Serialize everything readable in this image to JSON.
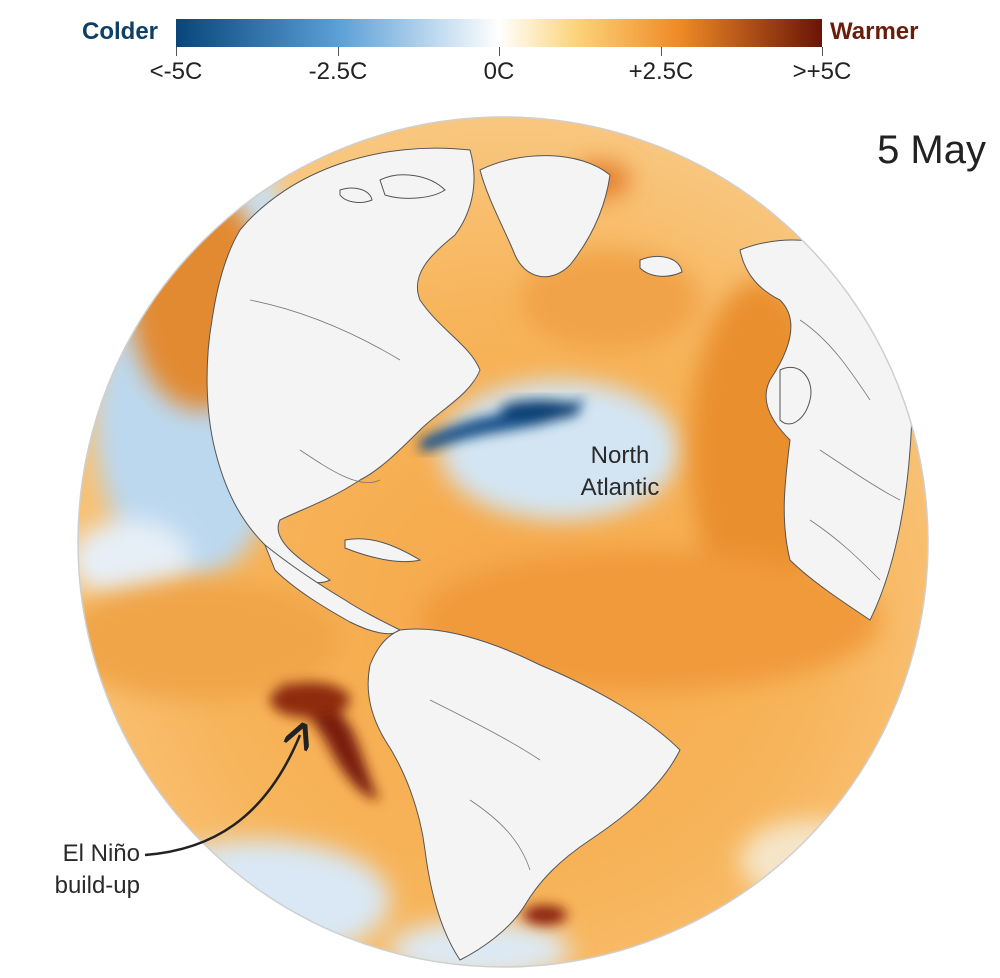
{
  "legend": {
    "colder_label": "Colder",
    "warmer_label": "Warmer",
    "ticks": [
      "<-5C",
      "-2.5C",
      "0C",
      "+2.5C",
      ">+5C"
    ],
    "colors": {
      "deep_cold": "#08457a",
      "cold": "#5a9fd6",
      "neutral": "#ffffff",
      "warm": "#f7a637",
      "deep_warm": "#6a1407"
    }
  },
  "date": "5 May",
  "labels": {
    "north_atlantic_line1": "North",
    "north_atlantic_line2": "Atlantic",
    "elnino_line1": "El Niño",
    "elnino_line2": "build-up"
  }
}
